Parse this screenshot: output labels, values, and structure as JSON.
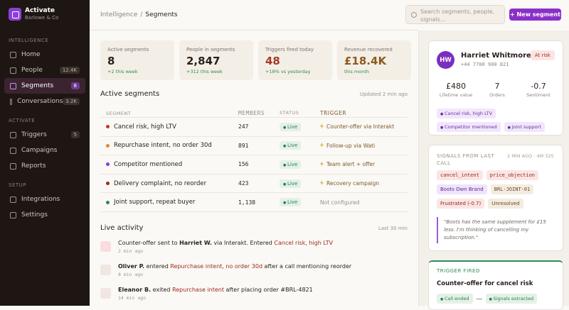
{
  "sidebar": {
    "brand": "Activate",
    "org": "Barlowe & Co",
    "sections": [
      {
        "title": "INTELLIGENCE",
        "items": [
          {
            "label": "Home"
          },
          {
            "label": "People",
            "badge": "12.4K"
          },
          {
            "label": "Segments",
            "badge": "8"
          },
          {
            "label": "Conversations",
            "badge": "3.2K"
          }
        ]
      },
      {
        "title": "ACTIVATE",
        "items": [
          {
            "label": "Triggers",
            "badge": "5"
          },
          {
            "label": "Campaigns"
          },
          {
            "label": "Reports"
          }
        ]
      },
      {
        "title": "SETUP",
        "items": [
          {
            "label": "Integrations"
          },
          {
            "label": "Settings"
          }
        ]
      }
    ]
  },
  "header": {
    "breadcrumb": "Intelligence",
    "current": "Segments",
    "search": "Search segments, people, signals...",
    "button": "+ New segment"
  },
  "stats": [
    {
      "label": "Active segments",
      "value": "8",
      "delta": "+2 this week"
    },
    {
      "label": "People in segments",
      "value": "2,847",
      "delta": "+312 this week"
    },
    {
      "label": "Triggers fired today",
      "value": "48",
      "delta": "+18% vs yesterday"
    },
    {
      "label": "Revenue recovered",
      "value": "£18.4K",
      "delta": "this month"
    }
  ],
  "segments": {
    "title": "Active segments",
    "updated": "Updated 2 min ago",
    "columns": [
      "SEGMENT",
      "MEMBERS",
      "STATUS",
      "TRIGGER"
    ],
    "rows": [
      {
        "name": "Cancel risk, high LTV",
        "color": "#c0392b",
        "members": "247",
        "status": "Live",
        "trigger": "Counter-offer via Interakt"
      },
      {
        "name": "Repurchase intent, no order 30d",
        "color": "#d98a2b",
        "members": "891",
        "status": "Live",
        "trigger": "Follow-up via Wati"
      },
      {
        "name": "Competitor mentioned",
        "color": "#7b3fe4",
        "members": "156",
        "status": "Live",
        "trigger": "Team alert + offer"
      },
      {
        "name": "Delivery complaint, no reorder",
        "color": "#8e2f24",
        "members": "423",
        "status": "Live",
        "trigger": "Recovery campaign"
      },
      {
        "name": "Joint support, repeat buyer",
        "color": "#2e8b57",
        "members": "1,138",
        "status": "Live",
        "trigger": "Not configured"
      }
    ]
  },
  "activity": {
    "title": "Live activity",
    "window": "Last 30 min",
    "items": [
      {
        "parts": [
          {
            "text": "Counter-offer sent to "
          },
          {
            "strong": "Harriet W."
          },
          {
            "text": " via Interakt. Entered "
          },
          {
            "link": "Cancel risk, high LTV"
          }
        ],
        "time": "2 min ago"
      },
      {
        "parts": [
          {
            "strong": "Oliver P."
          },
          {
            "text": " entered "
          },
          {
            "link": "Repurchase intent, no order 30d"
          },
          {
            "text": " after a call mentioning reorder"
          }
        ],
        "time": "8 min ago"
      },
      {
        "parts": [
          {
            "strong": "Eleanor B."
          },
          {
            "text": " exited "
          },
          {
            "link": "Repurchase intent"
          },
          {
            "text": " after placing order #BRL-4821"
          }
        ],
        "time": "14 min ago"
      }
    ]
  },
  "profile": {
    "initials": "HW",
    "name": "Harriet Whitmore",
    "phone": "+44 7700 900 821",
    "badge": "At risk",
    "stats": [
      {
        "value": "£480",
        "label": "Lifetime value"
      },
      {
        "value": "7",
        "label": "Orders"
      },
      {
        "value": "-0.7",
        "label": "Sentiment"
      }
    ],
    "tags": [
      "Cancel risk, high LTV",
      "Competitor mentioned",
      "Joint support"
    ]
  },
  "signals": {
    "title": "SIGNALS FROM LAST CALL",
    "meta": "2 MIN AGO · 4M 32S",
    "chips": [
      "cancel_intent",
      "price_objection",
      "Boots Own Brand",
      "BRL-JOINT-01",
      "Frustrated (-0.7)",
      "Unresolved"
    ],
    "quote": "\"Boots has the same supplement for £15 less. I'm thinking of cancelling my subscription.\""
  },
  "trigger": {
    "label": "TRIGGER FIRED",
    "title": "Counter-offer for cancel risk",
    "steps": [
      "Call ended",
      "Signals extracted"
    ]
  }
}
